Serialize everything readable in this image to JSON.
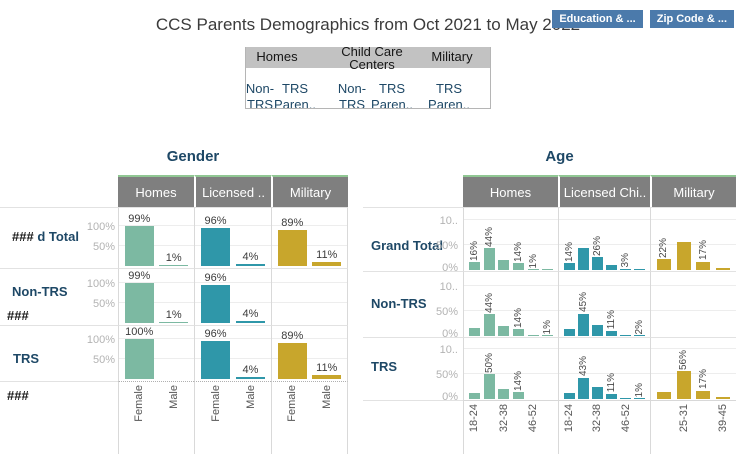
{
  "header": {
    "title": "CCS Parents Demographics from Oct 2021 to May 2022",
    "buttons": [
      {
        "label": "Education & ..."
      },
      {
        "label": "Zip Code & ..."
      }
    ]
  },
  "legend": {
    "group_headers": [
      "Homes",
      "Child Care Centers",
      "Military"
    ],
    "sub_headers": [
      "Non-TRS",
      "TRS Paren..",
      "Non-TRS",
      "TRS Paren..",
      "TRS Paren.."
    ]
  },
  "colors": {
    "navy": "#1e4866",
    "button_blue": "#4b7aab",
    "header_band_gray": "#7f7f7f",
    "header_top_green": "#90c793",
    "bar_green": "#7cb9a2",
    "bar_teal": "#2f97a9",
    "bar_gold": "#c8a62c"
  },
  "chart_data": [
    {
      "type": "bar",
      "title": "Gender",
      "y_axis": {
        "ticks": [
          "100%",
          "50%"
        ],
        "range": [
          0,
          100
        ],
        "unit": "%"
      },
      "columns": [
        {
          "label": "Homes",
          "color": "#7cb9a2",
          "xlabels": [
            "Female",
            "Male"
          ]
        },
        {
          "label": "Licensed ..",
          "color": "#2f97a9",
          "xlabels": [
            "Female",
            "Male"
          ]
        },
        {
          "label": "Military",
          "color": "#c8a62c",
          "xlabels": [
            "Female",
            "Male"
          ]
        }
      ],
      "rows": [
        {
          "prefix": "###",
          "label": "d Total",
          "cells": [
            {
              "values": [
                99,
                1
              ],
              "labels": [
                "99%",
                "1%"
              ]
            },
            {
              "values": [
                96,
                4
              ],
              "labels": [
                "96%",
                "4%"
              ]
            },
            {
              "values": [
                89,
                11
              ],
              "labels": [
                "89%",
                "11%"
              ]
            }
          ]
        },
        {
          "label": "Non-TRS",
          "note": "###",
          "cells": [
            {
              "values": [
                99,
                1
              ],
              "labels": [
                "99%",
                "1%"
              ]
            },
            {
              "values": [
                96,
                4
              ],
              "labels": [
                "96%",
                "4%"
              ]
            },
            {
              "values": [],
              "labels": []
            }
          ]
        },
        {
          "label": "TRS",
          "cells": [
            {
              "values": [
                100,
                0
              ],
              "labels": [
                "100%",
                ""
              ]
            },
            {
              "values": [
                96,
                4
              ],
              "labels": [
                "96%",
                "4%"
              ]
            },
            {
              "values": [
                89,
                11
              ],
              "labels": [
                "89%",
                "11%"
              ]
            }
          ]
        }
      ],
      "footer_note": "###"
    },
    {
      "type": "bar",
      "title": "Age",
      "y_axis": {
        "ticks": [
          "10..",
          "50%",
          "0%"
        ],
        "range": [
          0,
          100
        ],
        "unit": "%"
      },
      "columns": [
        {
          "label": "Homes",
          "color": "#7cb9a2",
          "xlabels": [
            "18-24",
            "",
            "32-38",
            "",
            "46-52",
            ""
          ]
        },
        {
          "label": "Licensed Chi..",
          "color": "#2f97a9",
          "xlabels": [
            "18-24",
            "",
            "32-38",
            "",
            "46-52",
            ""
          ]
        },
        {
          "label": "Military",
          "color": "#c8a62c",
          "xlabels": [
            "",
            "25-31",
            "",
            "39-45"
          ]
        }
      ],
      "rows": [
        {
          "label": "Grand Total",
          "cells": [
            {
              "values": [
                16,
                44,
                21,
                14,
                1,
                1
              ],
              "labels": [
                "16%",
                "44%",
                "",
                "14%",
                "1%",
                ""
              ]
            },
            {
              "values": [
                14,
                44,
                26,
                10,
                3,
                1
              ],
              "labels": [
                "14%",
                "",
                "26%",
                "",
                "3%",
                ""
              ]
            },
            {
              "values": [
                22,
                56,
                17,
                5
              ],
              "labels": [
                "22%",
                "",
                "17%",
                ""
              ]
            }
          ]
        },
        {
          "label": "Non-TRS",
          "cells": [
            {
              "values": [
                16,
                44,
                21,
                14,
                1,
                1
              ],
              "labels": [
                "",
                "44%",
                "",
                "14%",
                "",
                "1%"
              ]
            },
            {
              "values": [
                15,
                45,
                22,
                11,
                1,
                2
              ],
              "labels": [
                "",
                "45%",
                "",
                "11%",
                "",
                "2%"
              ]
            },
            {
              "values": [],
              "labels": []
            }
          ]
        },
        {
          "label": "TRS",
          "cells": [
            {
              "values": [
                12,
                50,
                20,
                14,
                0,
                0
              ],
              "labels": [
                "",
                "50%",
                "",
                "14%",
                "",
                ""
              ]
            },
            {
              "values": [
                13,
                43,
                25,
                11,
                2,
                1
              ],
              "labels": [
                "",
                "43%",
                "",
                "11%",
                "",
                "1%"
              ]
            },
            {
              "values": [
                15,
                56,
                17,
                5
              ],
              "labels": [
                "",
                "56%",
                "17%",
                ""
              ]
            }
          ]
        }
      ]
    }
  ]
}
